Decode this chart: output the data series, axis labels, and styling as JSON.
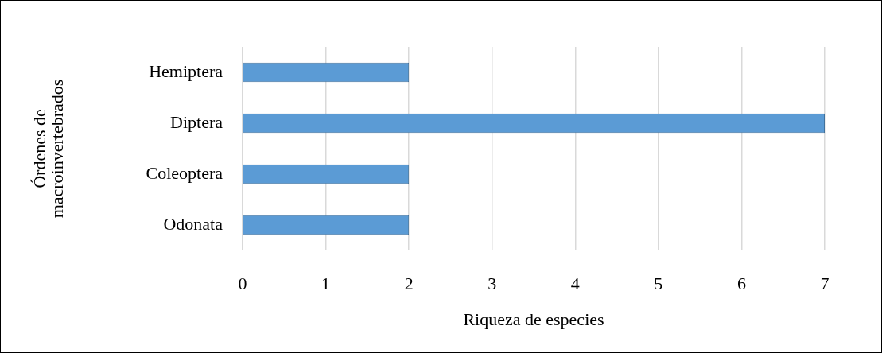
{
  "chart_data": {
    "type": "bar",
    "orientation": "horizontal",
    "categories": [
      "Hemiptera",
      "Diptera",
      "Coleoptera",
      "Odonata"
    ],
    "values": [
      2,
      7,
      2,
      2
    ],
    "color": "#5b9bd5",
    "xlim": [
      0,
      7
    ],
    "xticks": [
      0,
      1,
      2,
      3,
      4,
      5,
      6,
      7
    ],
    "xlabel": "Riqueza de especies",
    "ylabel": "Órdenes de macroinvertebrados",
    "grid": "x",
    "legend": false
  }
}
